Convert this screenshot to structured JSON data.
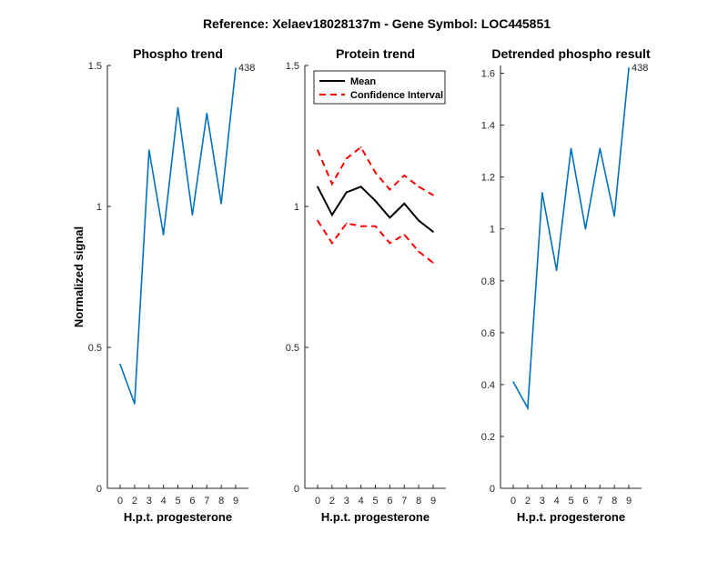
{
  "figure": {
    "title": "Reference:  Xelaev18028137m - Gene Symbol:  LOC445851"
  },
  "chart_data": [
    {
      "type": "line",
      "title": "Phospho trend",
      "xlabel": "H.p.t. progesterone",
      "ylabel": "Normalized signal",
      "categories": [
        "0",
        "2",
        "3",
        "4",
        "5",
        "6",
        "7",
        "8",
        "9"
      ],
      "yticks": [
        "0",
        "0.5",
        "1",
        "1.5"
      ],
      "ylim": [
        0,
        1.5
      ],
      "series": [
        {
          "values": [
            0.44,
            0.3,
            1.2,
            0.9,
            1.35,
            0.97,
            1.33,
            1.01,
            1.49
          ],
          "color": "#0072BD",
          "style": "solid"
        }
      ],
      "annotation": {
        "text": "438",
        "at_index": 8
      }
    },
    {
      "type": "line",
      "title": "Protein trend",
      "xlabel": "H.p.t. progesterone",
      "ylabel": "",
      "categories": [
        "0",
        "2",
        "3",
        "4",
        "5",
        "6",
        "7",
        "8",
        "9"
      ],
      "yticks": [
        "0",
        "0.5",
        "1",
        "1.5"
      ],
      "ylim": [
        0,
        1.5
      ],
      "legend": {
        "placement": "top-left",
        "entries": [
          "Mean",
          "Confidence Interval"
        ]
      },
      "series": [
        {
          "name": "Mean",
          "values": [
            1.07,
            0.97,
            1.05,
            1.07,
            1.02,
            0.96,
            1.01,
            0.95,
            0.91
          ],
          "color": "#000000",
          "style": "solid"
        },
        {
          "name": "Confidence Interval",
          "values": [
            1.2,
            1.08,
            1.17,
            1.21,
            1.12,
            1.06,
            1.11,
            1.07,
            1.04
          ],
          "color": "#FF0000",
          "style": "dashed"
        },
        {
          "name": "Confidence Interval",
          "values": [
            0.95,
            0.87,
            0.94,
            0.93,
            0.93,
            0.87,
            0.9,
            0.84,
            0.8
          ],
          "color": "#FF0000",
          "style": "dashed"
        }
      ]
    },
    {
      "type": "line",
      "title": "Detrended phospho result",
      "xlabel": "H.p.t. progesterone",
      "ylabel": "",
      "categories": [
        "0",
        "2",
        "3",
        "4",
        "5",
        "6",
        "7",
        "8",
        "9"
      ],
      "yticks": [
        "0",
        "0.2",
        "0.4",
        "0.6",
        "0.8",
        "1",
        "1.2",
        "1.4",
        "1.6"
      ],
      "ylim": [
        0,
        1.63
      ],
      "series": [
        {
          "values": [
            0.41,
            0.31,
            1.14,
            0.84,
            1.31,
            1.0,
            1.31,
            1.05,
            1.62
          ],
          "color": "#0072BD",
          "style": "solid"
        }
      ],
      "annotation": {
        "text": "438",
        "at_index": 8
      }
    }
  ]
}
